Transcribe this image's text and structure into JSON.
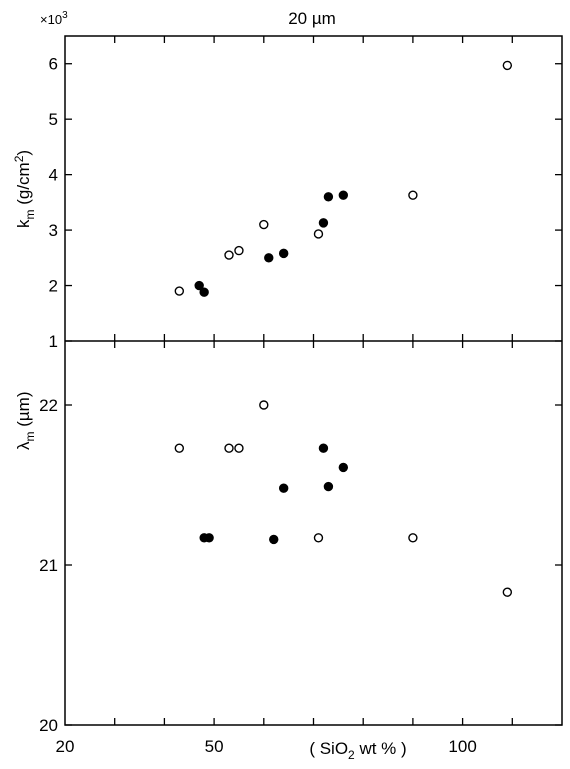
{
  "chart_data": [
    {
      "type": "scatter",
      "title": "20  µm",
      "multiplier": "×10",
      "multiplier_exp": "3",
      "ylabel_main": "k",
      "ylabel_sub": "m",
      "ylabel_unit": " (g/cm",
      "ylabel_unit_sup": "2",
      "ylabel_unit_close": ")",
      "xlim": [
        20,
        120
      ],
      "ylim": [
        1,
        6.5
      ],
      "yticks": [
        1,
        2,
        3,
        4,
        5,
        6
      ],
      "ytick_labels": [
        "1",
        "2",
        "3",
        "4",
        "5",
        "6"
      ],
      "grid": false,
      "series": [
        {
          "marker": "open-circle",
          "x": [
            43,
            53,
            55,
            60,
            71,
            90,
            109
          ],
          "y": [
            1.9,
            2.55,
            2.63,
            3.1,
            2.93,
            3.63,
            5.97
          ]
        },
        {
          "marker": "filled-circle",
          "x": [
            47,
            48,
            61,
            64,
            72,
            73,
            76
          ],
          "y": [
            2.0,
            1.88,
            2.5,
            2.58,
            3.13,
            3.6,
            3.63
          ]
        }
      ]
    },
    {
      "type": "scatter",
      "ylabel_main": "λ",
      "ylabel_sub": "m",
      "ylabel_unit": " (µm)",
      "xlabel": "( SiO",
      "xlabel_sub": "2",
      "xlabel_rest": " wt % )",
      "xlim": [
        20,
        120
      ],
      "xticks": [
        20,
        50,
        100
      ],
      "xtick_labels": [
        "20",
        "50",
        "100"
      ],
      "ylim": [
        20,
        22.4
      ],
      "yticks": [
        20,
        21,
        22
      ],
      "ytick_labels": [
        "20",
        "21",
        "22"
      ],
      "grid": false,
      "series": [
        {
          "marker": "open-circle",
          "x": [
            43,
            53,
            55,
            60,
            71,
            90,
            109
          ],
          "y": [
            21.73,
            21.73,
            21.73,
            22.0,
            21.17,
            21.17,
            20.83
          ]
        },
        {
          "marker": "filled-circle",
          "x": [
            48,
            49,
            62,
            64,
            72,
            73,
            76
          ],
          "y": [
            21.17,
            21.17,
            21.16,
            21.48,
            21.73,
            21.49,
            21.61
          ]
        }
      ]
    }
  ]
}
